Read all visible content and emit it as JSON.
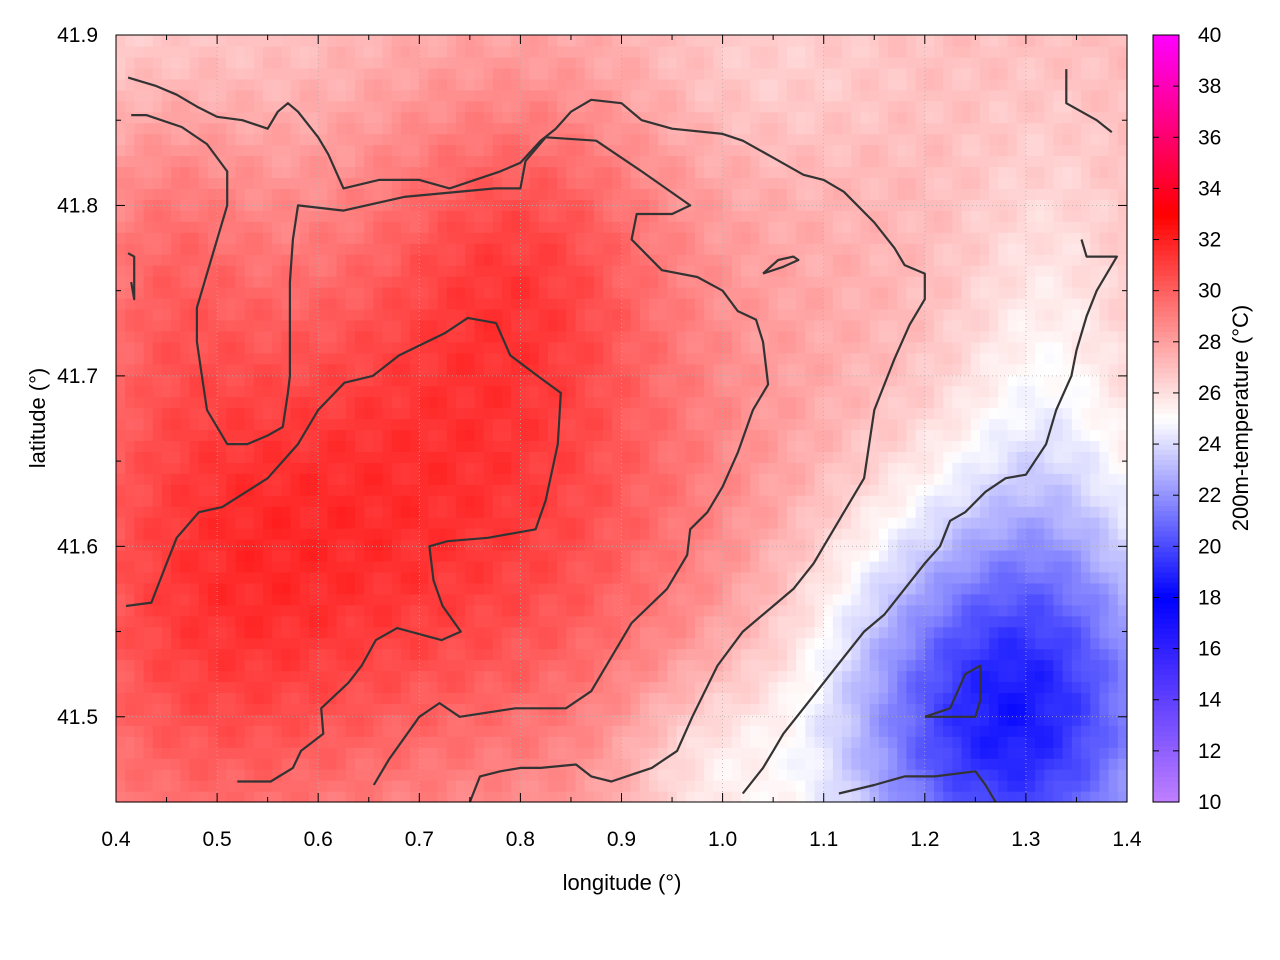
{
  "chart_data": {
    "type": "heatmap",
    "xlabel": "longitude (°)",
    "ylabel": "latitude (°)",
    "colorbar_label": "200m-temperature (°C)",
    "xlim": [
      0.4,
      1.4
    ],
    "ylim": [
      41.45,
      41.9
    ],
    "x_ticks": [
      0.4,
      0.5,
      0.6,
      0.7,
      0.8,
      0.9,
      1.0,
      1.1,
      1.2,
      1.3,
      1.4
    ],
    "x_tick_labels": [
      "0.4",
      "0.5",
      "0.6",
      "0.7",
      "0.8",
      "0.9",
      "1.0",
      "1.1",
      "1.2",
      "1.3",
      "1.4"
    ],
    "y_ticks": [
      41.5,
      41.6,
      41.7,
      41.8,
      41.9
    ],
    "y_tick_labels": [
      "41.5",
      "41.6",
      "41.7",
      "41.8",
      "41.9"
    ],
    "colorbar_range": [
      10,
      40
    ],
    "colorbar_ticks": [
      10,
      12,
      14,
      16,
      18,
      20,
      22,
      24,
      26,
      28,
      30,
      32,
      34,
      36,
      38,
      40
    ],
    "colorbar_tick_labels": [
      "10",
      "12",
      "14",
      "16",
      "18",
      "20",
      "22",
      "24",
      "26",
      "28",
      "30",
      "32",
      "34",
      "36",
      "38",
      "40"
    ],
    "colormap": [
      {
        "value": 10,
        "color": "#c080ff"
      },
      {
        "value": 18,
        "color": "#0000ff"
      },
      {
        "value": 25,
        "color": "#ffffff"
      },
      {
        "value": 33,
        "color": "#ff0000"
      },
      {
        "value": 40,
        "color": "#ff00ff"
      }
    ],
    "grid": true,
    "contour_color": "#333333",
    "field": {
      "base": 27.2,
      "features": [
        {
          "x": 0.72,
          "y": 41.62,
          "amplitude": 4.0,
          "sx": 0.22,
          "sy": 0.12
        },
        {
          "x": 0.47,
          "y": 41.55,
          "amplitude": 2.2,
          "sx": 0.12,
          "sy": 0.12
        },
        {
          "x": 0.8,
          "y": 41.78,
          "amplitude": 2.2,
          "sx": 0.1,
          "sy": 0.07
        },
        {
          "x": 0.45,
          "y": 41.78,
          "amplitude": 1.4,
          "sx": 0.06,
          "sy": 0.07
        },
        {
          "x": 1.28,
          "y": 41.5,
          "amplitude": -8.5,
          "sx": 0.13,
          "sy": 0.09
        },
        {
          "x": 1.32,
          "y": 41.7,
          "amplitude": -1.6,
          "sx": 0.06,
          "sy": 0.1
        },
        {
          "x": 0.98,
          "y": 41.47,
          "amplitude": -1.8,
          "sx": 0.06,
          "sy": 0.04
        },
        {
          "x": 0.4,
          "y": 41.9,
          "amplitude": -1.0,
          "sx": 0.15,
          "sy": 0.05
        },
        {
          "x": 1.05,
          "y": 41.88,
          "amplitude": -0.8,
          "sx": 0.1,
          "sy": 0.04
        }
      ]
    },
    "contours": [
      {
        "level": 30,
        "points": [
          [
            0.41,
            41.565
          ],
          [
            0.435,
            41.567
          ],
          [
            0.45,
            41.59
          ],
          [
            0.46,
            41.605
          ],
          [
            0.482,
            41.62
          ],
          [
            0.505,
            41.623
          ],
          [
            0.55,
            41.64
          ],
          [
            0.58,
            41.66
          ],
          [
            0.6,
            41.68
          ],
          [
            0.626,
            41.696
          ],
          [
            0.654,
            41.7
          ],
          [
            0.68,
            41.712
          ],
          [
            0.725,
            41.725
          ],
          [
            0.748,
            41.734
          ],
          [
            0.776,
            41.731
          ],
          [
            0.79,
            41.712
          ],
          [
            0.817,
            41.7
          ],
          [
            0.84,
            41.69
          ],
          [
            0.837,
            41.66
          ],
          [
            0.825,
            41.627
          ],
          [
            0.815,
            41.61
          ],
          [
            0.768,
            41.605
          ],
          [
            0.728,
            41.603
          ],
          [
            0.71,
            41.6
          ],
          [
            0.714,
            41.58
          ],
          [
            0.723,
            41.565
          ],
          [
            0.741,
            41.55
          ],
          [
            0.722,
            41.545
          ],
          [
            0.678,
            41.552
          ],
          [
            0.657,
            41.545
          ],
          [
            0.643,
            41.53
          ],
          [
            0.63,
            41.52
          ],
          [
            0.603,
            41.505
          ],
          [
            0.605,
            41.49
          ],
          [
            0.583,
            41.48
          ],
          [
            0.575,
            41.47
          ],
          [
            0.553,
            41.462
          ],
          [
            0.52,
            41.462
          ]
        ]
      },
      {
        "level": 30,
        "points": [
          [
            0.655,
            41.46
          ],
          [
            0.67,
            41.475
          ],
          [
            0.7,
            41.5
          ],
          [
            0.72,
            41.508
          ],
          [
            0.74,
            41.5
          ],
          [
            0.795,
            41.505
          ],
          [
            0.845,
            41.505
          ],
          [
            0.87,
            41.515
          ],
          [
            0.89,
            41.535
          ],
          [
            0.91,
            41.555
          ],
          [
            0.945,
            41.575
          ],
          [
            0.965,
            41.595
          ],
          [
            0.968,
            41.61
          ],
          [
            0.985,
            41.62
          ],
          [
            1.0,
            41.635
          ],
          [
            1.015,
            41.655
          ],
          [
            1.03,
            41.68
          ],
          [
            1.045,
            41.695
          ],
          [
            1.04,
            41.72
          ],
          [
            1.033,
            41.733
          ],
          [
            1.015,
            41.738
          ],
          [
            1.0,
            41.75
          ],
          [
            0.975,
            41.758
          ],
          [
            0.94,
            41.762
          ],
          [
            0.91,
            41.78
          ],
          [
            0.915,
            41.795
          ],
          [
            0.95,
            41.795
          ],
          [
            0.968,
            41.8
          ],
          [
            0.92,
            41.82
          ],
          [
            0.875,
            41.838
          ],
          [
            0.825,
            41.84
          ],
          [
            0.805,
            41.826
          ],
          [
            0.8,
            41.81
          ],
          [
            0.775,
            41.81
          ],
          [
            0.685,
            41.805
          ],
          [
            0.625,
            41.797
          ],
          [
            0.58,
            41.8
          ],
          [
            0.575,
            41.78
          ],
          [
            0.572,
            41.755
          ],
          [
            0.572,
            41.7
          ],
          [
            0.57,
            41.69
          ],
          [
            0.565,
            41.67
          ],
          [
            0.55,
            41.665
          ],
          [
            0.53,
            41.66
          ],
          [
            0.51,
            41.66
          ],
          [
            0.5,
            41.67
          ],
          [
            0.49,
            41.68
          ],
          [
            0.485,
            41.7
          ],
          [
            0.48,
            41.72
          ],
          [
            0.48,
            41.74
          ],
          [
            0.49,
            41.76
          ],
          [
            0.5,
            41.78
          ],
          [
            0.51,
            41.8
          ],
          [
            0.51,
            41.82
          ],
          [
            0.49,
            41.836
          ],
          [
            0.465,
            41.846
          ],
          [
            0.43,
            41.853
          ],
          [
            0.415,
            41.853
          ]
        ]
      },
      {
        "level": 30,
        "points": [
          [
            0.415,
            41.755
          ],
          [
            0.418,
            41.745
          ],
          [
            0.418,
            41.77
          ],
          [
            0.412,
            41.772
          ]
        ]
      },
      {
        "level": 28,
        "points": [
          [
            0.412,
            41.875
          ],
          [
            0.44,
            41.87
          ],
          [
            0.46,
            41.865
          ],
          [
            0.48,
            41.858
          ],
          [
            0.5,
            41.852
          ],
          [
            0.525,
            41.85
          ],
          [
            0.55,
            41.845
          ],
          [
            0.56,
            41.855
          ],
          [
            0.57,
            41.86
          ],
          [
            0.58,
            41.855
          ],
          [
            0.6,
            41.84
          ],
          [
            0.61,
            41.83
          ],
          [
            0.625,
            41.81
          ],
          [
            0.66,
            41.815
          ],
          [
            0.7,
            41.815
          ],
          [
            0.73,
            41.81
          ],
          [
            0.755,
            41.815
          ],
          [
            0.78,
            41.82
          ],
          [
            0.8,
            41.825
          ],
          [
            0.82,
            41.838
          ],
          [
            0.835,
            41.845
          ],
          [
            0.85,
            41.855
          ],
          [
            0.87,
            41.862
          ],
          [
            0.9,
            41.86
          ],
          [
            0.92,
            41.85
          ],
          [
            0.95,
            41.845
          ],
          [
            1.0,
            41.842
          ],
          [
            1.02,
            41.838
          ],
          [
            1.05,
            41.828
          ],
          [
            1.08,
            41.818
          ],
          [
            1.1,
            41.815
          ],
          [
            1.12,
            41.808
          ],
          [
            1.15,
            41.79
          ],
          [
            1.17,
            41.775
          ],
          [
            1.18,
            41.765
          ],
          [
            1.2,
            41.76
          ],
          [
            1.2,
            41.745
          ],
          [
            1.185,
            41.73
          ],
          [
            1.17,
            41.71
          ],
          [
            1.16,
            41.695
          ],
          [
            1.15,
            41.68
          ],
          [
            1.145,
            41.66
          ],
          [
            1.14,
            41.64
          ],
          [
            1.12,
            41.62
          ],
          [
            1.1,
            41.6
          ],
          [
            1.09,
            41.59
          ],
          [
            1.07,
            41.575
          ],
          [
            1.05,
            41.565
          ],
          [
            1.02,
            41.55
          ],
          [
            0.995,
            41.53
          ],
          [
            0.97,
            41.5
          ],
          [
            0.955,
            41.48
          ],
          [
            0.93,
            41.47
          ],
          [
            0.89,
            41.462
          ],
          [
            0.87,
            41.465
          ],
          [
            0.855,
            41.472
          ],
          [
            0.82,
            41.47
          ],
          [
            0.8,
            41.47
          ],
          [
            0.78,
            41.468
          ],
          [
            0.76,
            41.465
          ],
          [
            0.75,
            41.45
          ]
        ]
      },
      {
        "level": 28,
        "points": [
          [
            1.04,
            41.76
          ],
          [
            1.06,
            41.764
          ],
          [
            1.075,
            41.768
          ],
          [
            1.07,
            41.77
          ],
          [
            1.055,
            41.768
          ],
          [
            1.04,
            41.76
          ]
        ]
      },
      {
        "level": 26,
        "points": [
          [
            1.02,
            41.455
          ],
          [
            1.04,
            41.47
          ],
          [
            1.05,
            41.48
          ],
          [
            1.06,
            41.49
          ],
          [
            1.08,
            41.505
          ],
          [
            1.1,
            41.52
          ],
          [
            1.12,
            41.535
          ],
          [
            1.14,
            41.55
          ],
          [
            1.16,
            41.56
          ],
          [
            1.18,
            41.575
          ],
          [
            1.2,
            41.59
          ],
          [
            1.215,
            41.6
          ],
          [
            1.225,
            41.615
          ],
          [
            1.24,
            41.62
          ],
          [
            1.26,
            41.632
          ],
          [
            1.28,
            41.64
          ],
          [
            1.3,
            41.642
          ],
          [
            1.32,
            41.66
          ],
          [
            1.33,
            41.68
          ],
          [
            1.345,
            41.7
          ],
          [
            1.35,
            41.715
          ],
          [
            1.36,
            41.735
          ],
          [
            1.37,
            41.75
          ],
          [
            1.39,
            41.77
          ],
          [
            1.38,
            41.77
          ],
          [
            1.36,
            41.77
          ],
          [
            1.355,
            41.78
          ]
        ]
      },
      {
        "level": 26,
        "points": [
          [
            1.34,
            41.88
          ],
          [
            1.34,
            41.86
          ],
          [
            1.37,
            41.85
          ],
          [
            1.385,
            41.843
          ]
        ]
      },
      {
        "level": 24,
        "points": [
          [
            1.2,
            41.5
          ],
          [
            1.225,
            41.505
          ],
          [
            1.24,
            41.525
          ],
          [
            1.255,
            41.53
          ],
          [
            1.255,
            41.51
          ],
          [
            1.25,
            41.5
          ],
          [
            1.2,
            41.5
          ]
        ]
      },
      {
        "level": 24,
        "points": [
          [
            1.115,
            41.455
          ],
          [
            1.15,
            41.46
          ],
          [
            1.18,
            41.465
          ],
          [
            1.21,
            41.465
          ],
          [
            1.25,
            41.468
          ],
          [
            1.26,
            41.46
          ],
          [
            1.27,
            41.45
          ]
        ]
      }
    ]
  }
}
